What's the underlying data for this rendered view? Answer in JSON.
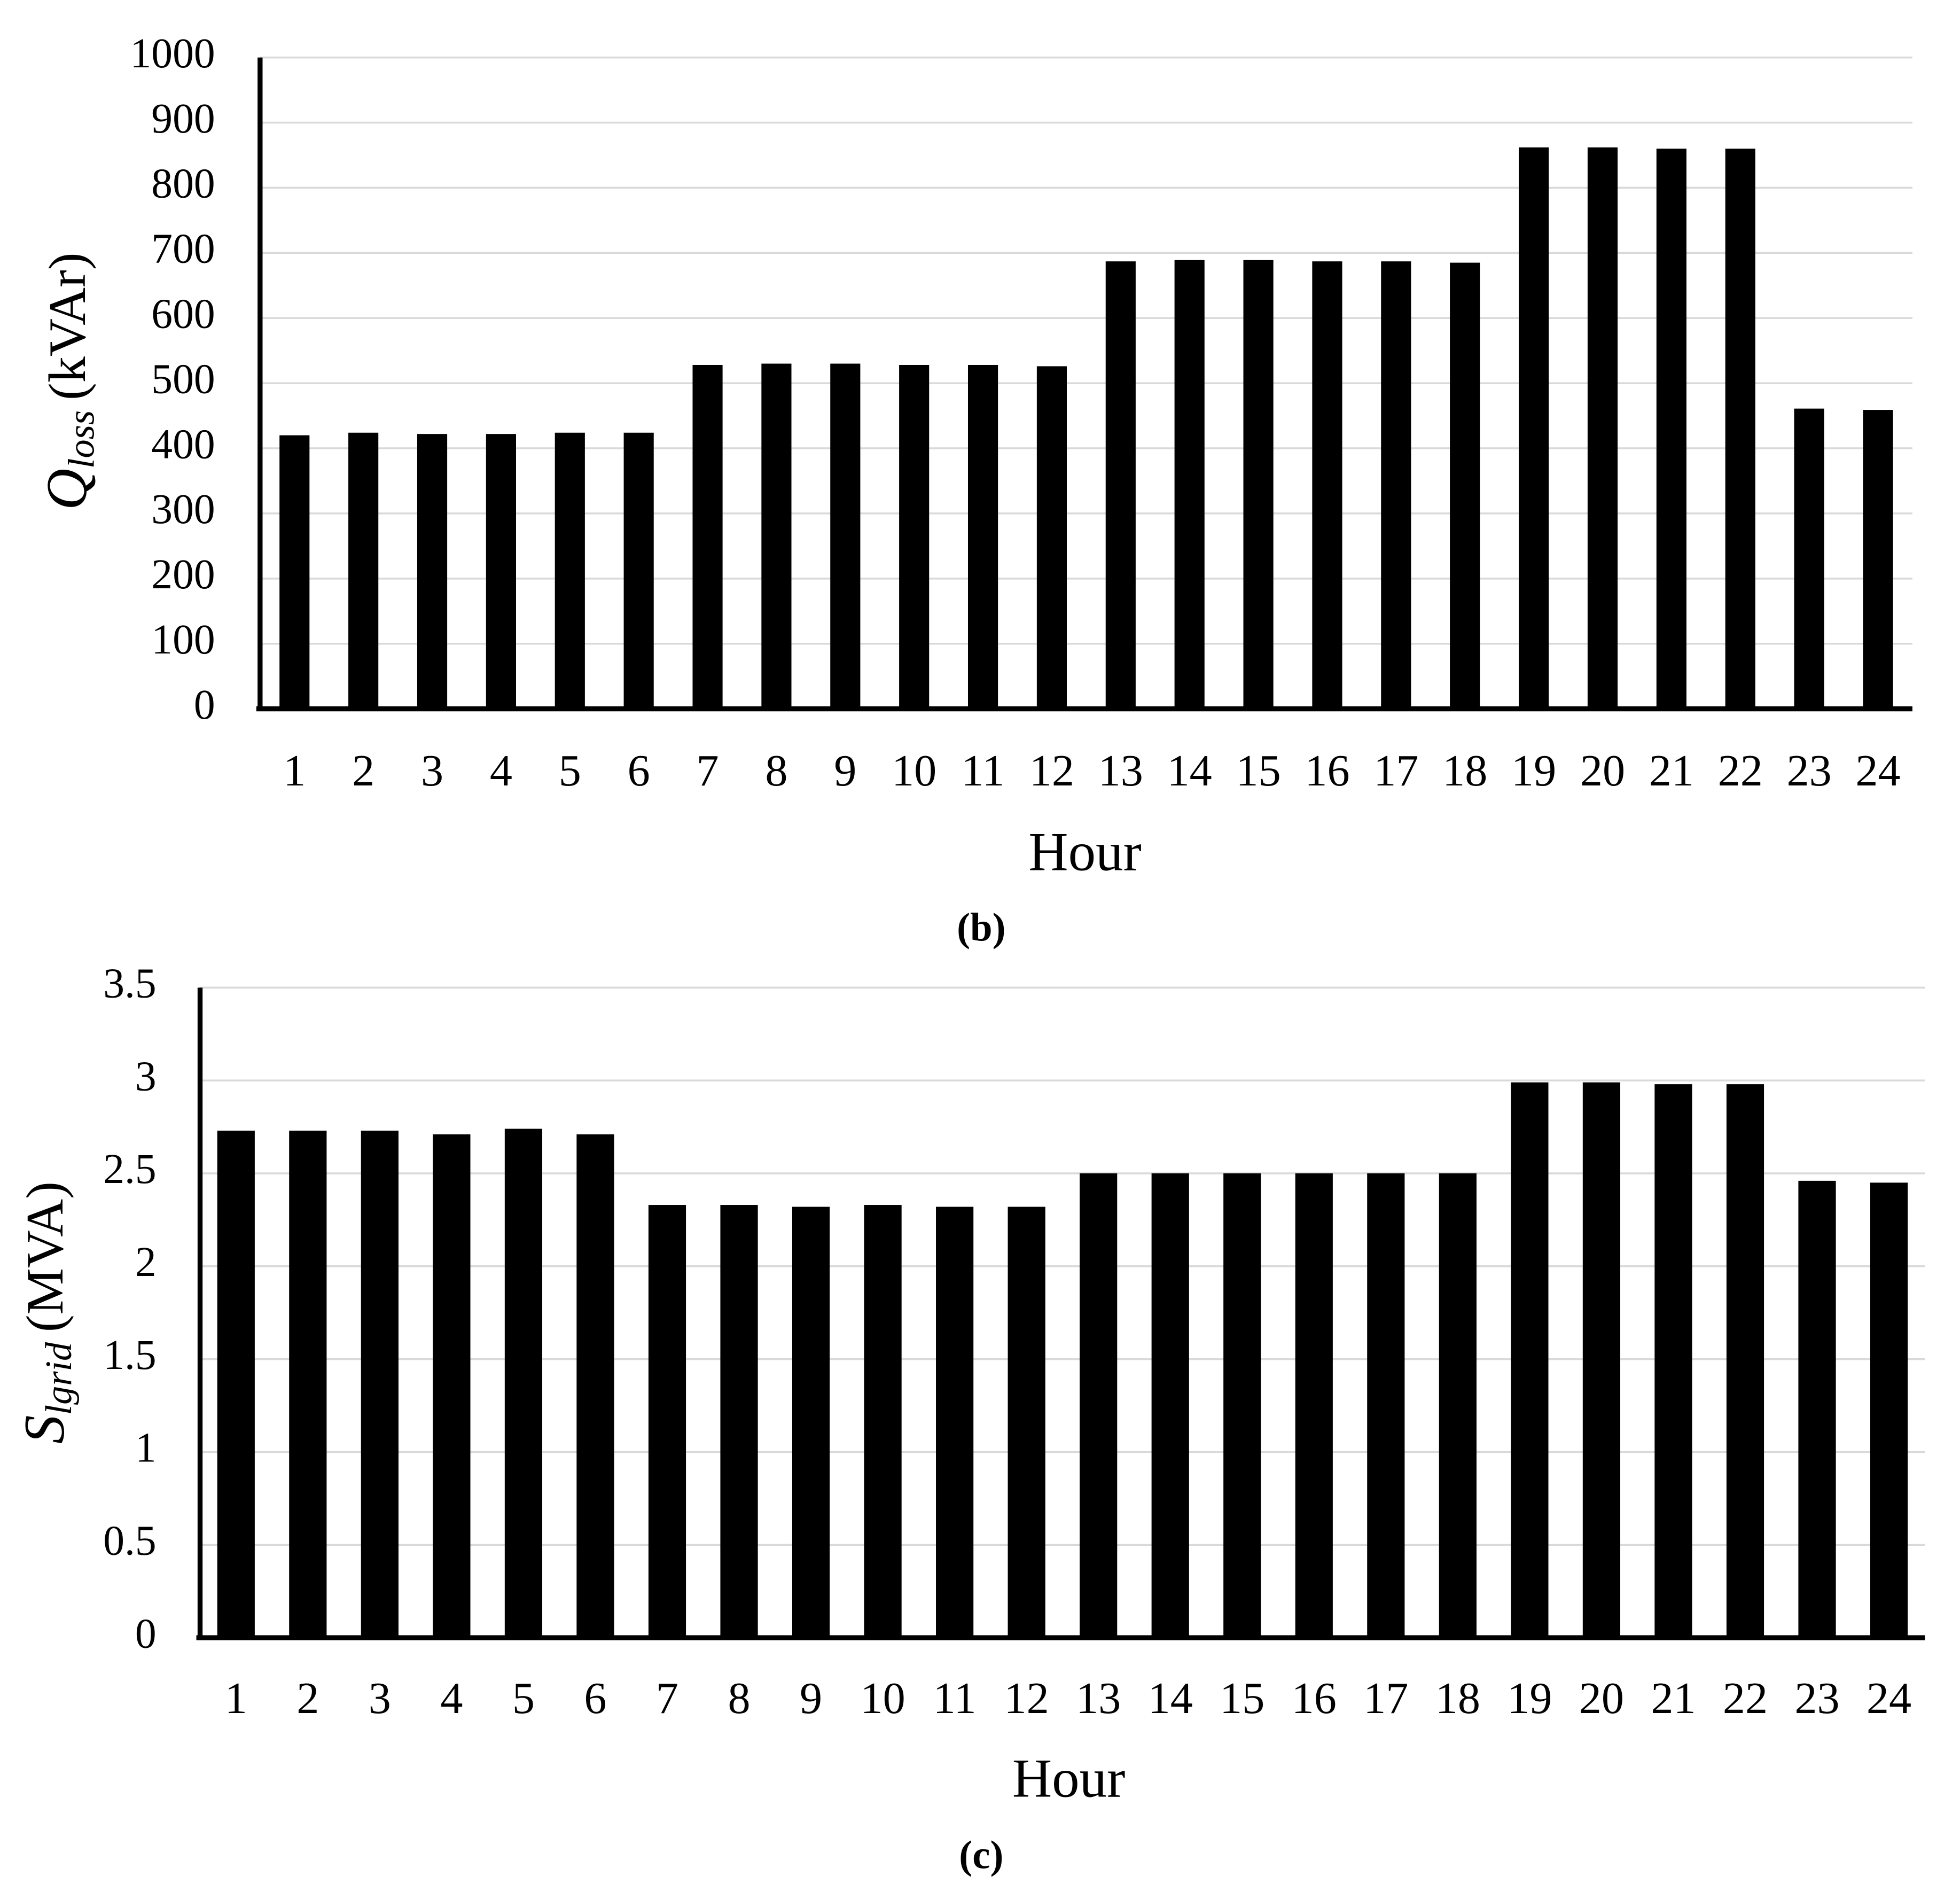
{
  "chart_data": [
    {
      "type": "bar",
      "y_label": {
        "symbol": "Q",
        "subscript": "loss",
        "unit": "(kVAr)"
      },
      "x_label": "Hour",
      "caption": "(b)",
      "categories": [
        "1",
        "2",
        "3",
        "4",
        "5",
        "6",
        "7",
        "8",
        "9",
        "10",
        "11",
        "12",
        "13",
        "14",
        "15",
        "16",
        "17",
        "18",
        "19",
        "20",
        "21",
        "22",
        "23",
        "24"
      ],
      "values": [
        420,
        424,
        422,
        422,
        424,
        424,
        528,
        530,
        530,
        528,
        528,
        526,
        687,
        689,
        689,
        687,
        687,
        685,
        862,
        862,
        860,
        860,
        461,
        459
      ],
      "color": "#000000",
      "ylim": [
        0,
        1000
      ],
      "yticks": [
        0,
        100,
        200,
        300,
        400,
        500,
        600,
        700,
        800,
        900,
        1000
      ],
      "grid": true
    },
    {
      "type": "bar",
      "y_label": {
        "symbol": "S",
        "subscript": "lgrid",
        "unit": "(MVA)"
      },
      "x_label": "Hour",
      "caption": "(c)",
      "categories": [
        "1",
        "2",
        "3",
        "4",
        "5",
        "6",
        "7",
        "8",
        "9",
        "10",
        "11",
        "12",
        "13",
        "14",
        "15",
        "16",
        "17",
        "18",
        "19",
        "20",
        "21",
        "22",
        "23",
        "24"
      ],
      "values": [
        2.73,
        2.73,
        2.73,
        2.71,
        2.74,
        2.71,
        2.33,
        2.33,
        2.32,
        2.33,
        2.32,
        2.32,
        2.5,
        2.5,
        2.5,
        2.5,
        2.5,
        2.5,
        2.99,
        2.99,
        2.98,
        2.98,
        2.46,
        2.45
      ],
      "color": "#000000",
      "ylim": [
        0,
        3.5
      ],
      "yticks": [
        0,
        0.5,
        1,
        1.5,
        2,
        2.5,
        3,
        3.5
      ],
      "grid": true
    }
  ]
}
